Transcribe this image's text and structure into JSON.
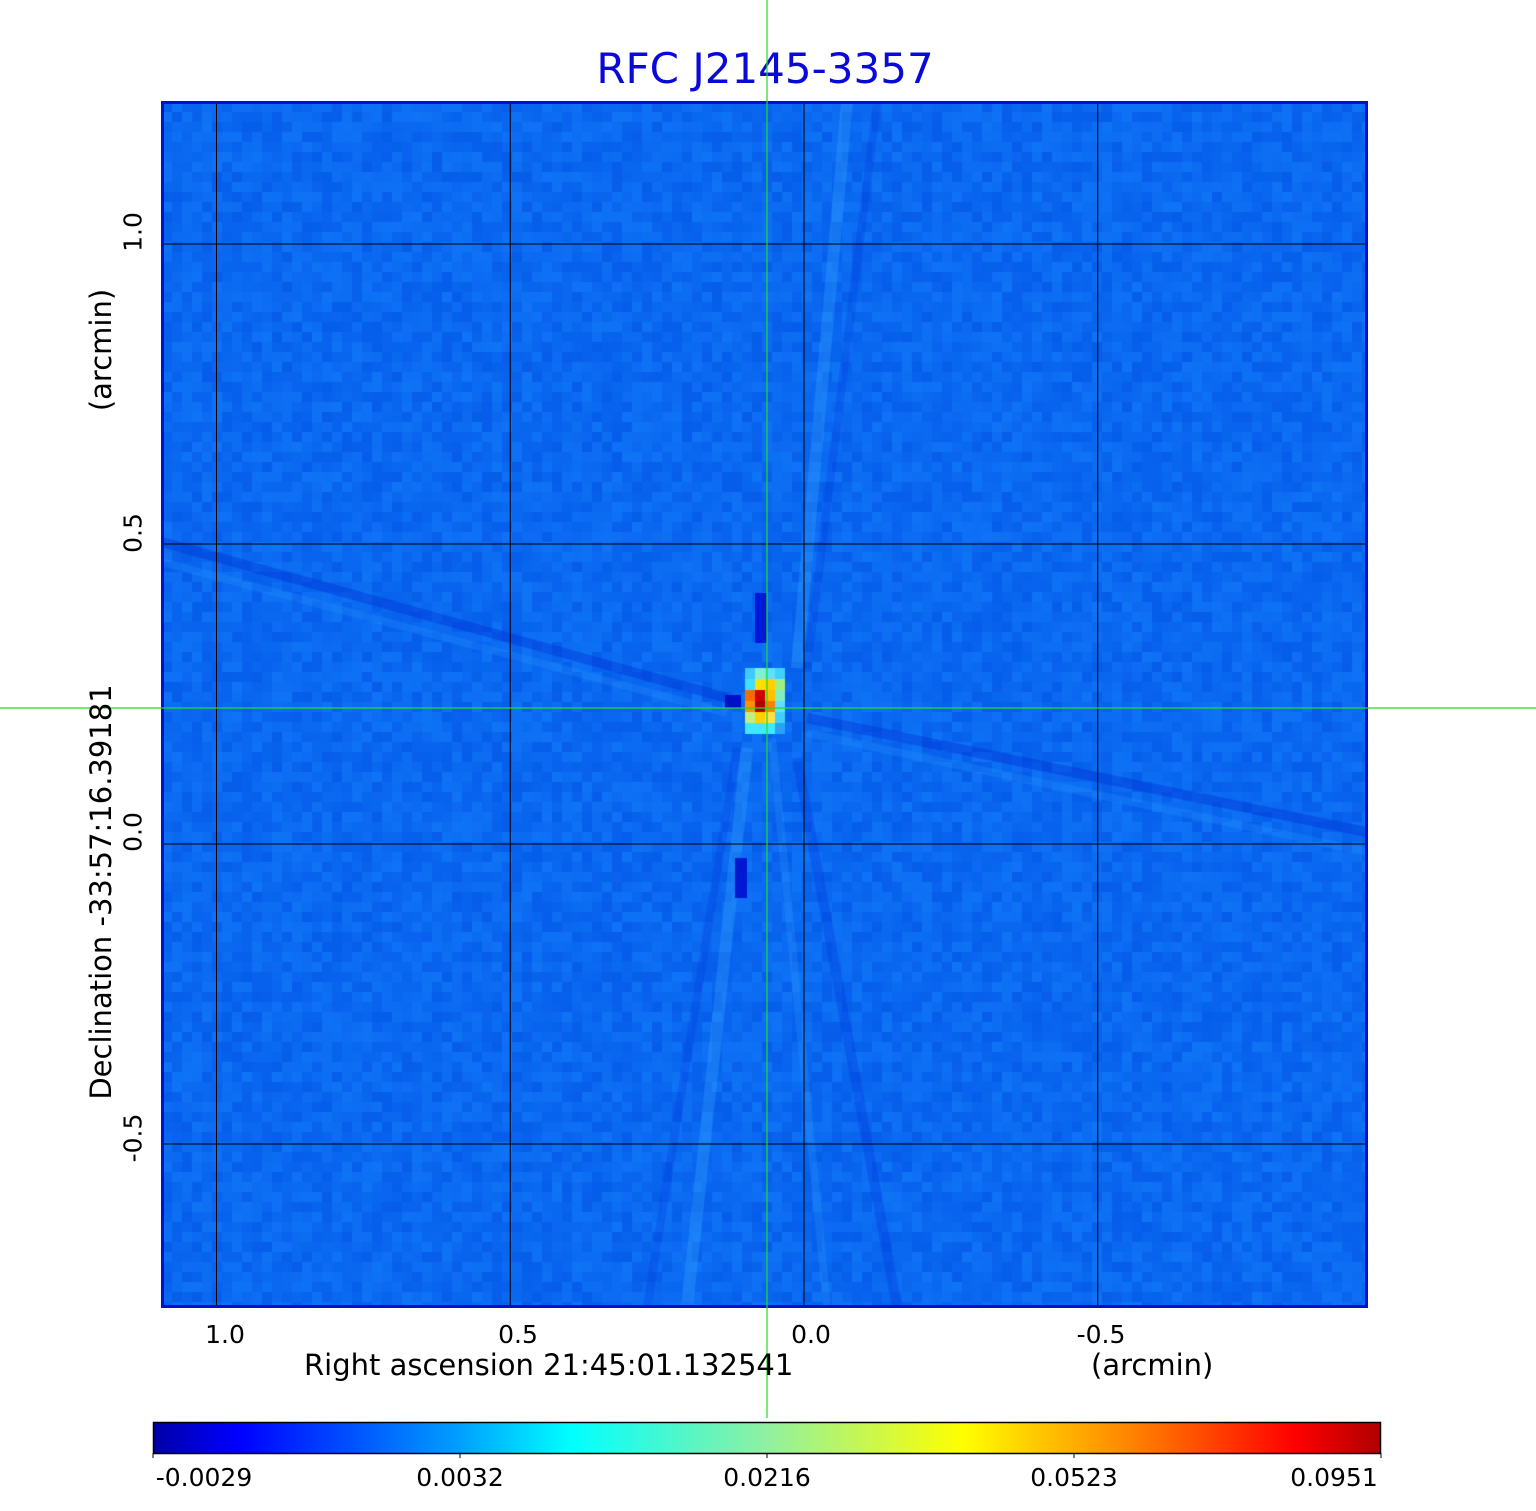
{
  "chart_data": {
    "type": "heatmap",
    "title": "RFC J2145-3357",
    "xlabel": "Right ascension  21:45:01.132541",
    "xunit": "(arcmin)",
    "ylabel": "Declination  -33:57:16.39181",
    "yunit": "(arcmin)",
    "x_ticks": [
      "1.0",
      "0.5",
      "0.0",
      "-0.5"
    ],
    "x_tick_values": [
      1.0,
      0.5,
      0.0,
      -0.5
    ],
    "y_ticks": [
      "1.0",
      "0.5",
      "0.0",
      "-0.5"
    ],
    "y_tick_values": [
      1.0,
      0.5,
      0.0,
      -0.5
    ],
    "xlim": [
      1.09,
      -0.96
    ],
    "ylim": [
      -0.77,
      1.24
    ],
    "grid": true,
    "colormap": "jet",
    "colorbar": {
      "ticks": [
        "-0.0029",
        "0.0032",
        "0.0216",
        "0.0523",
        "0.0951"
      ],
      "min": -0.0029,
      "max": 0.0951,
      "placement": "bottom"
    },
    "peak": {
      "x": 0.06,
      "y": 0.23,
      "value": 0.0951
    },
    "crosshair": {
      "x": 0.06,
      "y": 0.23,
      "color": "#22dd22"
    },
    "background_color": "#0a68f0",
    "title_color": "#0a0ad8"
  }
}
